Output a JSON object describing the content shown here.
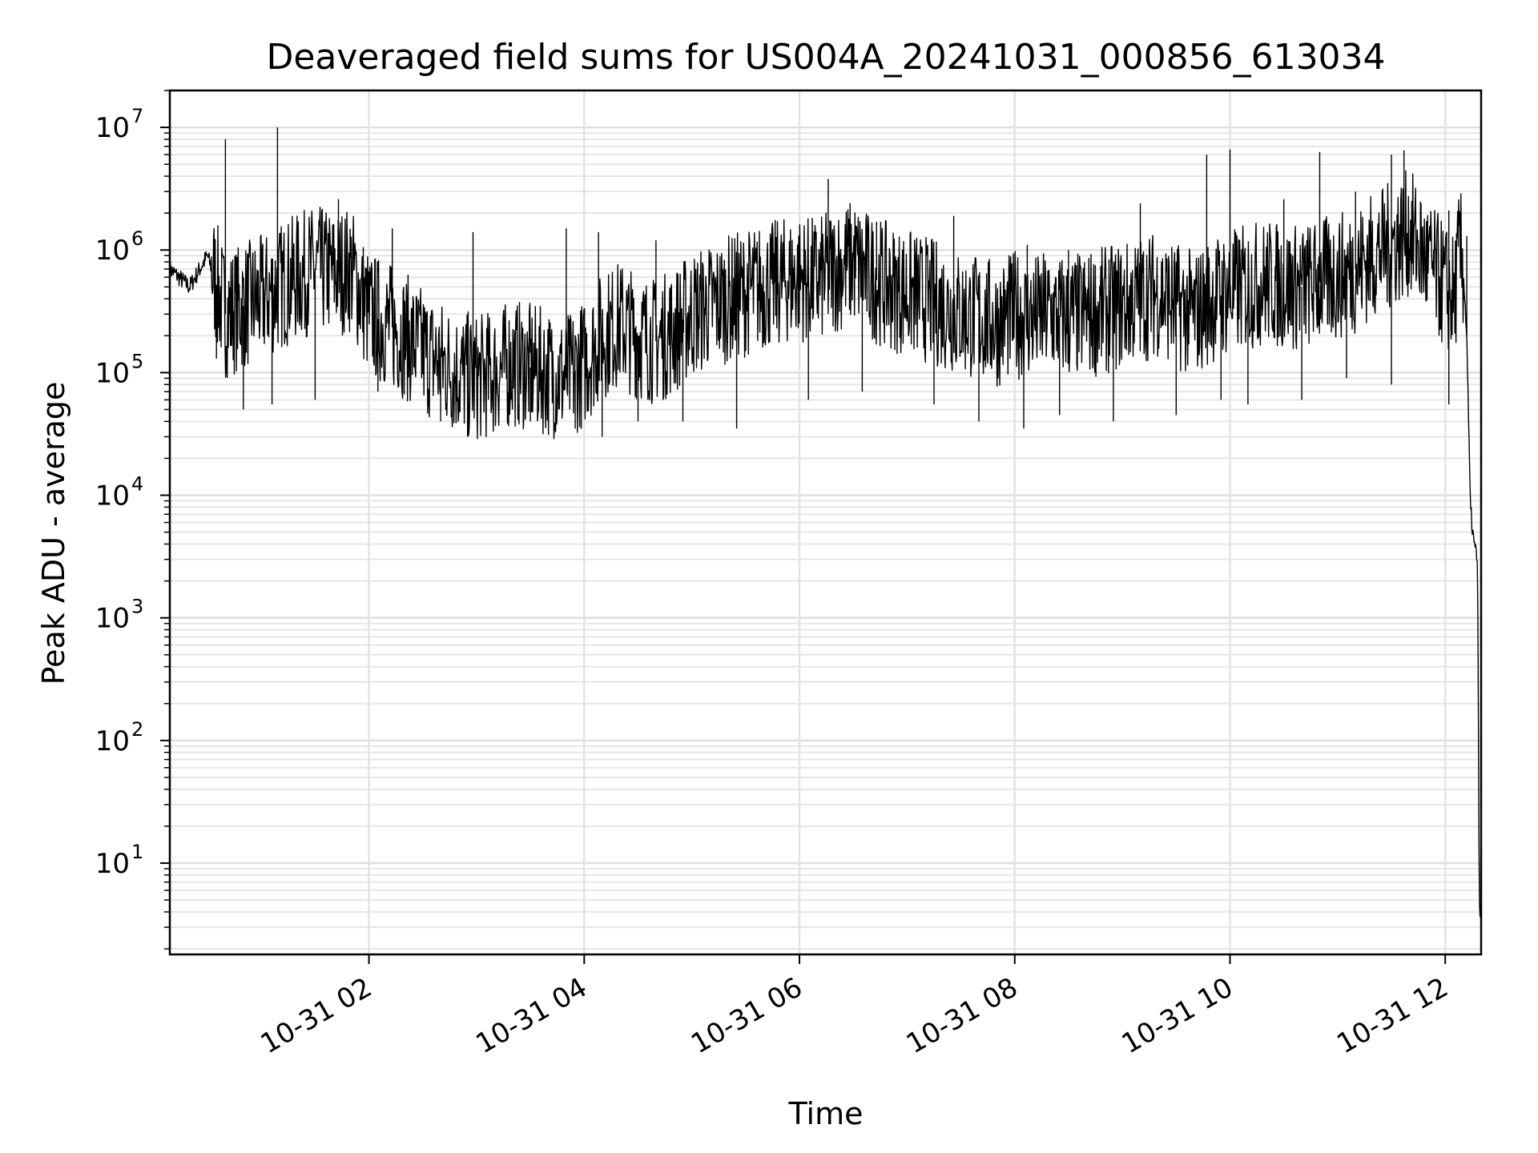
{
  "chart_data": {
    "type": "line",
    "title": "Deaveraged field sums for US004A_20241031_000856_613034",
    "xlabel": "Time",
    "ylabel": "Peak ADU - average",
    "yscale": "log",
    "xlim": [
      "2024-10-31 00:09",
      "2024-10-31 12:20"
    ],
    "ylim": [
      1.8,
      20000000
    ],
    "grid": true,
    "x_ticks": [
      "10-31 02",
      "10-31 04",
      "10-31 06",
      "10-31 08",
      "10-31 10",
      "10-31 12"
    ],
    "y_ticks": [
      {
        "base": "10",
        "exp": "1",
        "value": 10
      },
      {
        "base": "10",
        "exp": "2",
        "value": 100
      },
      {
        "base": "10",
        "exp": "3",
        "value": 1000
      },
      {
        "base": "10",
        "exp": "4",
        "value": 10000
      },
      {
        "base": "10",
        "exp": "5",
        "value": 100000
      },
      {
        "base": "10",
        "exp": "6",
        "value": 1000000
      },
      {
        "base": "10",
        "exp": "7",
        "value": 10000000
      }
    ],
    "series": [
      {
        "color": "#000000",
        "x": [
          "00:09",
          "00:20",
          "00:30",
          "00:40",
          "00:50",
          "01:00",
          "01:10",
          "01:20",
          "01:30",
          "01:40",
          "01:50",
          "02:00",
          "02:10",
          "02:20",
          "02:30",
          "02:40",
          "02:50",
          "03:00",
          "03:10",
          "03:20",
          "03:30",
          "03:40",
          "03:50",
          "04:00",
          "04:10",
          "04:20",
          "04:30",
          "04:40",
          "04:50",
          "05:00",
          "05:10",
          "05:20",
          "05:30",
          "05:40",
          "05:50",
          "06:00",
          "06:10",
          "06:20",
          "06:30",
          "06:40",
          "06:50",
          "07:00",
          "07:10",
          "07:20",
          "07:30",
          "07:40",
          "07:50",
          "08:00",
          "08:10",
          "08:20",
          "08:30",
          "08:40",
          "08:50",
          "09:00",
          "09:10",
          "09:20",
          "09:30",
          "09:40",
          "09:50",
          "10:00",
          "10:10",
          "10:20",
          "10:30",
          "10:40",
          "10:50",
          "11:00",
          "11:10",
          "11:20",
          "11:30",
          "11:40",
          "11:50",
          "12:00",
          "12:05",
          "12:08",
          "12:10",
          "12:12",
          "12:14",
          "12:16",
          "12:18",
          "12:19",
          "12:20"
        ],
        "y": [
          700000,
          500000,
          900000,
          300000,
          350000,
          400000,
          500000,
          600000,
          700000,
          650000,
          700000,
          300000,
          250000,
          200000,
          150000,
          120000,
          100000,
          90000,
          100000,
          120000,
          110000,
          100000,
          90000,
          120000,
          200000,
          250000,
          200000,
          180000,
          220000,
          300000,
          350000,
          400000,
          450000,
          500000,
          550000,
          600000,
          550000,
          700000,
          800000,
          600000,
          500000,
          450000,
          400000,
          350000,
          300000,
          280000,
          250000,
          300000,
          280000,
          300000,
          280000,
          300000,
          320000,
          350000,
          400000,
          450000,
          350000,
          300000,
          400000,
          450000,
          500000,
          550000,
          500000,
          500000,
          550000,
          600000,
          700000,
          900000,
          1100000,
          1400000,
          800000,
          500000,
          400000,
          1000000,
          700000,
          200000,
          8000,
          4000,
          3000,
          4,
          4
        ]
      },
      {
        "name_hidden": "",
        "x": [
          "00:40",
          "01:09",
          "01:43",
          "02:13",
          "02:58",
          "03:50",
          "04:08",
          "04:40",
          "05:45",
          "06:16",
          "06:43",
          "07:26",
          "08:07",
          "08:30",
          "09:10",
          "09:47",
          "10:00",
          "10:30",
          "10:50",
          "11:10",
          "11:30",
          "11:37",
          "12:02",
          "12:12"
        ],
        "y": [
          8000000,
          10000000,
          2600000,
          1500000,
          1400000,
          1500000,
          1400000,
          1200000,
          1500000,
          3800000,
          1700000,
          1900000,
          1100000,
          1000000,
          2400000,
          6000000,
          6600000,
          2600000,
          6300000,
          3000000,
          6000000,
          6500000,
          2100000,
          1300000
        ]
      },
      {
        "x": [
          "00:35",
          "00:50",
          "01:06",
          "01:30",
          "02:05",
          "02:40",
          "02:55",
          "03:30",
          "03:55",
          "04:10",
          "04:30",
          "04:55",
          "05:25",
          "06:05",
          "06:35",
          "07:15",
          "07:40",
          "08:05",
          "08:25",
          "08:55",
          "09:30",
          "09:55",
          "10:10",
          "10:40",
          "11:05",
          "11:30",
          "12:02"
        ],
        "y": [
          130000,
          50000,
          55000,
          60000,
          70000,
          40000,
          30000,
          40000,
          35000,
          30000,
          40000,
          40000,
          35000,
          60000,
          70000,
          55000,
          40000,
          35000,
          45000,
          40000,
          45000,
          60000,
          55000,
          60000,
          90000,
          80000,
          55000
        ]
      }
    ]
  }
}
